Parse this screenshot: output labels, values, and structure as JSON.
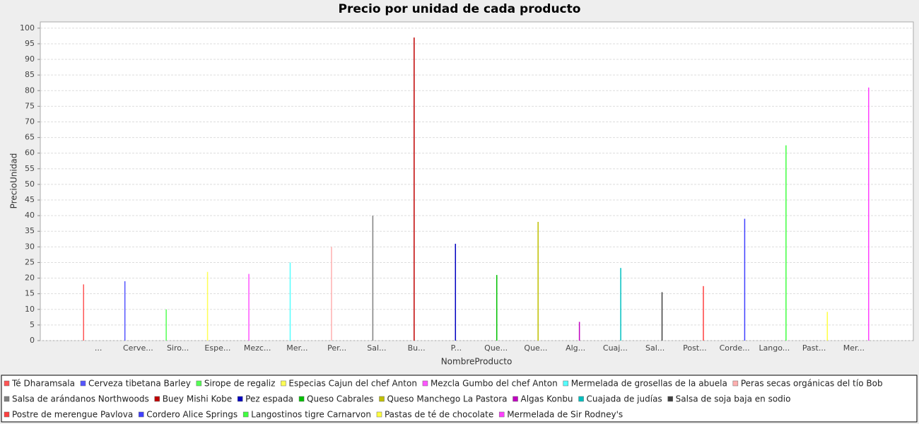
{
  "chart_data": {
    "type": "bar",
    "title": "Precio por unidad de cada producto",
    "x_label": "NombreProducto",
    "y_label": "PrecioUnidad",
    "categories": [
      "...",
      "Cerve...",
      "Siro...",
      "Espe...",
      "Mezc...",
      "Mer...",
      "Per...",
      "Sal...",
      "Bu...",
      "P...",
      "Que...",
      "Que...",
      "Alg...",
      "Cuaj...",
      "Sal...",
      "Post...",
      "Corde...",
      "Lango...",
      "Past...",
      "Mer..."
    ],
    "ylim": [
      0,
      102
    ],
    "yticks": [
      0,
      5,
      10,
      15,
      20,
      25,
      30,
      35,
      40,
      45,
      50,
      55,
      60,
      65,
      70,
      75,
      80,
      85,
      90,
      95,
      100
    ],
    "grid": true,
    "legend": "bottom",
    "series": [
      {
        "name": "Té Dharamsala",
        "color": "#ff5555",
        "values": [
          18,
          null,
          null,
          null,
          null,
          null,
          null,
          null,
          null,
          null,
          null,
          null,
          null,
          null,
          null,
          null,
          null,
          null,
          null,
          null
        ]
      },
      {
        "name": "Cerveza tibetana Barley",
        "color": "#5555ff",
        "values": [
          null,
          19,
          null,
          null,
          null,
          null,
          null,
          null,
          null,
          null,
          null,
          null,
          null,
          null,
          null,
          null,
          null,
          null,
          null,
          null
        ]
      },
      {
        "name": "Sirope de regaliz",
        "color": "#55ff55",
        "values": [
          null,
          null,
          10,
          null,
          null,
          null,
          null,
          null,
          null,
          null,
          null,
          null,
          null,
          null,
          null,
          null,
          null,
          null,
          null,
          null
        ]
      },
      {
        "name": "Especias Cajun del chef Anton",
        "color": "#ffff55",
        "values": [
          null,
          null,
          null,
          22,
          null,
          null,
          null,
          null,
          null,
          null,
          null,
          null,
          null,
          null,
          null,
          null,
          null,
          null,
          null,
          null
        ]
      },
      {
        "name": "Mezcla Gumbo del chef Anton",
        "color": "#ff55ff",
        "values": [
          null,
          null,
          null,
          null,
          21.35,
          null,
          null,
          null,
          null,
          null,
          null,
          null,
          null,
          null,
          null,
          null,
          null,
          null,
          null,
          null
        ]
      },
      {
        "name": "Mermelada de grosellas de la abuela",
        "color": "#55ffff",
        "values": [
          null,
          null,
          null,
          null,
          null,
          25,
          null,
          null,
          null,
          null,
          null,
          null,
          null,
          null,
          null,
          null,
          null,
          null,
          null,
          null
        ]
      },
      {
        "name": "Peras secas orgánicas del tío Bob",
        "color": "#ffafaf",
        "values": [
          null,
          null,
          null,
          null,
          null,
          null,
          30,
          null,
          null,
          null,
          null,
          null,
          null,
          null,
          null,
          null,
          null,
          null,
          null,
          null
        ]
      },
      {
        "name": "Salsa de arándanos Northwoods",
        "color": "#808080",
        "values": [
          null,
          null,
          null,
          null,
          null,
          null,
          null,
          40,
          null,
          null,
          null,
          null,
          null,
          null,
          null,
          null,
          null,
          null,
          null,
          null
        ]
      },
      {
        "name": "Buey Mishi Kobe",
        "color": "#c00000",
        "values": [
          null,
          null,
          null,
          null,
          null,
          null,
          null,
          null,
          97,
          null,
          null,
          null,
          null,
          null,
          null,
          null,
          null,
          null,
          null,
          null
        ]
      },
      {
        "name": "Pez espada",
        "color": "#0000c0",
        "values": [
          null,
          null,
          null,
          null,
          null,
          null,
          null,
          null,
          null,
          31,
          null,
          null,
          null,
          null,
          null,
          null,
          null,
          null,
          null,
          null
        ]
      },
      {
        "name": "Queso Cabrales",
        "color": "#00c000",
        "values": [
          null,
          null,
          null,
          null,
          null,
          null,
          null,
          null,
          null,
          null,
          21,
          null,
          null,
          null,
          null,
          null,
          null,
          null,
          null,
          null
        ]
      },
      {
        "name": "Queso Manchego La Pastora",
        "color": "#c0c000",
        "values": [
          null,
          null,
          null,
          null,
          null,
          null,
          null,
          null,
          null,
          null,
          null,
          38,
          null,
          null,
          null,
          null,
          null,
          null,
          null,
          null
        ]
      },
      {
        "name": "Algas Konbu",
        "color": "#c000c0",
        "values": [
          null,
          null,
          null,
          null,
          null,
          null,
          null,
          null,
          null,
          null,
          null,
          null,
          6,
          null,
          null,
          null,
          null,
          null,
          null,
          null
        ]
      },
      {
        "name": "Cuajada de judías",
        "color": "#00c0c0",
        "values": [
          null,
          null,
          null,
          null,
          null,
          null,
          null,
          null,
          null,
          null,
          null,
          null,
          null,
          23.25,
          null,
          null,
          null,
          null,
          null,
          null
        ]
      },
      {
        "name": "Salsa de soja baja en sodio",
        "color": "#404040",
        "values": [
          null,
          null,
          null,
          null,
          null,
          null,
          null,
          null,
          null,
          null,
          null,
          null,
          null,
          null,
          15.5,
          null,
          null,
          null,
          null,
          null
        ]
      },
      {
        "name": "Postre de merengue Pavlova",
        "color": "#ff4040",
        "values": [
          null,
          null,
          null,
          null,
          null,
          null,
          null,
          null,
          null,
          null,
          null,
          null,
          null,
          null,
          null,
          17.45,
          null,
          null,
          null,
          null
        ]
      },
      {
        "name": "Cordero Alice Springs",
        "color": "#4040ff",
        "values": [
          null,
          null,
          null,
          null,
          null,
          null,
          null,
          null,
          null,
          null,
          null,
          null,
          null,
          null,
          null,
          null,
          39,
          null,
          null,
          null
        ]
      },
      {
        "name": "Langostinos tigre Carnarvon",
        "color": "#40ff40",
        "values": [
          null,
          null,
          null,
          null,
          null,
          null,
          null,
          null,
          null,
          null,
          null,
          null,
          null,
          null,
          null,
          null,
          null,
          62.5,
          null,
          null
        ]
      },
      {
        "name": "Pastas de té de chocolate",
        "color": "#ffff40",
        "values": [
          null,
          null,
          null,
          null,
          null,
          null,
          null,
          null,
          null,
          null,
          null,
          null,
          null,
          null,
          null,
          null,
          null,
          null,
          9.2,
          null
        ]
      },
      {
        "name": "Mermelada de Sir Rodney's",
        "color": "#ff40ff",
        "values": [
          null,
          null,
          null,
          null,
          null,
          null,
          null,
          null,
          null,
          null,
          null,
          null,
          null,
          null,
          null,
          null,
          null,
          null,
          null,
          81
        ]
      }
    ]
  }
}
